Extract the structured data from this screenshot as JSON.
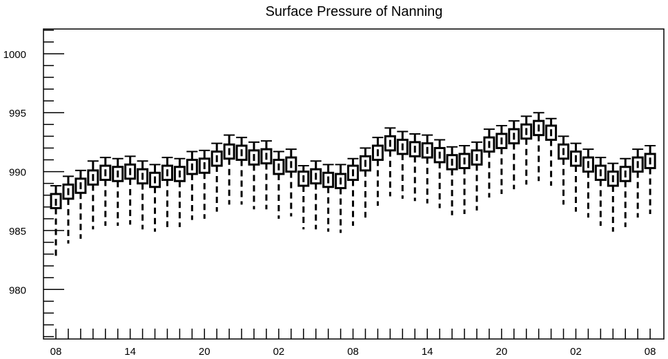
{
  "chart_data": {
    "type": "box",
    "title": "Surface Pressure of Nanning",
    "xlabel": "",
    "ylabel": "",
    "ylim": [
      975.8,
      1002.1
    ],
    "grid": false,
    "x_tick_labels": [
      "08",
      "14",
      "20",
      "02",
      "08",
      "14",
      "20",
      "02",
      "08"
    ],
    "y_tick_labels": [
      "980",
      "985",
      "990",
      "995",
      "1000"
    ],
    "series": [
      {
        "values": [
          {
            "x": 0,
            "median": 987.4,
            "q1": 986.9,
            "q3": 988.1,
            "whisker_low": 982.8,
            "whisker_high": 988.8
          },
          {
            "x": 1,
            "median": 988.3,
            "q1": 987.7,
            "q3": 988.9,
            "whisker_low": 983.9,
            "whisker_high": 989.6
          },
          {
            "x": 2,
            "median": 988.8,
            "q1": 988.2,
            "q3": 989.4,
            "whisker_low": 984.3,
            "whisker_high": 990.1
          },
          {
            "x": 3,
            "median": 989.5,
            "q1": 988.9,
            "q3": 990.1,
            "whisker_low": 985.1,
            "whisker_high": 990.9
          },
          {
            "x": 4,
            "median": 989.9,
            "q1": 989.3,
            "q3": 990.5,
            "whisker_low": 985.4,
            "whisker_high": 991.2
          },
          {
            "x": 5,
            "median": 989.8,
            "q1": 989.2,
            "q3": 990.4,
            "whisker_low": 985.4,
            "whisker_high": 991.1
          },
          {
            "x": 6,
            "median": 990.0,
            "q1": 989.4,
            "q3": 990.6,
            "whisker_low": 985.5,
            "whisker_high": 991.3
          },
          {
            "x": 7,
            "median": 989.6,
            "q1": 989.0,
            "q3": 990.2,
            "whisker_low": 985.1,
            "whisker_high": 990.9
          },
          {
            "x": 8,
            "median": 989.3,
            "q1": 988.7,
            "q3": 989.9,
            "whisker_low": 984.9,
            "whisker_high": 990.6
          },
          {
            "x": 9,
            "median": 989.9,
            "q1": 989.3,
            "q3": 990.5,
            "whisker_low": 985.3,
            "whisker_high": 991.2
          },
          {
            "x": 10,
            "median": 989.8,
            "q1": 989.2,
            "q3": 990.4,
            "whisker_low": 985.3,
            "whisker_high": 991.1
          },
          {
            "x": 11,
            "median": 990.4,
            "q1": 989.8,
            "q3": 991.0,
            "whisker_low": 985.9,
            "whisker_high": 991.7
          },
          {
            "x": 12,
            "median": 990.5,
            "q1": 989.9,
            "q3": 991.1,
            "whisker_low": 986.0,
            "whisker_high": 991.8
          },
          {
            "x": 13,
            "median": 991.1,
            "q1": 990.5,
            "q3": 991.7,
            "whisker_low": 986.6,
            "whisker_high": 992.4
          },
          {
            "x": 14,
            "median": 991.7,
            "q1": 991.1,
            "q3": 992.3,
            "whisker_low": 987.2,
            "whisker_high": 993.1
          },
          {
            "x": 15,
            "median": 991.6,
            "q1": 991.0,
            "q3": 992.2,
            "whisker_low": 987.2,
            "whisker_high": 992.9
          },
          {
            "x": 16,
            "median": 991.2,
            "q1": 990.6,
            "q3": 991.8,
            "whisker_low": 986.8,
            "whisker_high": 992.5
          },
          {
            "x": 17,
            "median": 991.3,
            "q1": 990.7,
            "q3": 991.9,
            "whisker_low": 986.8,
            "whisker_high": 992.6
          },
          {
            "x": 18,
            "median": 990.4,
            "q1": 989.8,
            "q3": 991.0,
            "whisker_low": 986.0,
            "whisker_high": 991.7
          },
          {
            "x": 19,
            "median": 990.6,
            "q1": 990.0,
            "q3": 991.2,
            "whisker_low": 986.2,
            "whisker_high": 991.9
          },
          {
            "x": 20,
            "median": 989.4,
            "q1": 988.8,
            "q3": 990.0,
            "whisker_low": 985.1,
            "whisker_high": 990.5
          },
          {
            "x": 21,
            "median": 989.6,
            "q1": 989.0,
            "q3": 990.2,
            "whisker_low": 985.1,
            "whisker_high": 990.9
          },
          {
            "x": 22,
            "median": 989.3,
            "q1": 988.7,
            "q3": 989.9,
            "whisker_low": 984.9,
            "whisker_high": 990.6
          },
          {
            "x": 23,
            "median": 989.2,
            "q1": 988.6,
            "q3": 989.8,
            "whisker_low": 984.8,
            "whisker_high": 990.6
          },
          {
            "x": 24,
            "median": 989.9,
            "q1": 989.3,
            "q3": 990.5,
            "whisker_low": 985.4,
            "whisker_high": 991.1
          },
          {
            "x": 25,
            "median": 990.7,
            "q1": 990.1,
            "q3": 991.3,
            "whisker_low": 986.1,
            "whisker_high": 992.0
          },
          {
            "x": 26,
            "median": 991.6,
            "q1": 991.0,
            "q3": 992.2,
            "whisker_low": 987.1,
            "whisker_high": 992.9
          },
          {
            "x": 27,
            "median": 992.4,
            "q1": 991.8,
            "q3": 993.0,
            "whisker_low": 987.9,
            "whisker_high": 993.7
          },
          {
            "x": 28,
            "median": 992.1,
            "q1": 991.5,
            "q3": 992.7,
            "whisker_low": 987.7,
            "whisker_high": 993.4
          },
          {
            "x": 29,
            "median": 991.9,
            "q1": 991.3,
            "q3": 992.5,
            "whisker_low": 987.5,
            "whisker_high": 993.2
          },
          {
            "x": 30,
            "median": 991.8,
            "q1": 991.2,
            "q3": 992.4,
            "whisker_low": 987.3,
            "whisker_high": 993.1
          },
          {
            "x": 31,
            "median": 991.4,
            "q1": 990.8,
            "q3": 992.0,
            "whisker_low": 986.9,
            "whisker_high": 992.7
          },
          {
            "x": 32,
            "median": 990.8,
            "q1": 990.2,
            "q3": 991.4,
            "whisker_low": 986.3,
            "whisker_high": 992.1
          },
          {
            "x": 33,
            "median": 990.9,
            "q1": 990.3,
            "q3": 991.5,
            "whisker_low": 986.4,
            "whisker_high": 992.2
          },
          {
            "x": 34,
            "median": 991.2,
            "q1": 990.6,
            "q3": 991.8,
            "whisker_low": 986.7,
            "whisker_high": 992.5
          },
          {
            "x": 35,
            "median": 992.3,
            "q1": 991.7,
            "q3": 992.9,
            "whisker_low": 987.8,
            "whisker_high": 993.6
          },
          {
            "x": 36,
            "median": 992.6,
            "q1": 992.0,
            "q3": 993.2,
            "whisker_low": 988.1,
            "whisker_high": 993.9
          },
          {
            "x": 37,
            "median": 993.0,
            "q1": 992.4,
            "q3": 993.6,
            "whisker_low": 988.5,
            "whisker_high": 994.3
          },
          {
            "x": 38,
            "median": 993.4,
            "q1": 992.8,
            "q3": 994.0,
            "whisker_low": 988.9,
            "whisker_high": 994.7
          },
          {
            "x": 39,
            "median": 993.7,
            "q1": 993.1,
            "q3": 994.3,
            "whisker_low": 989.2,
            "whisker_high": 995.0
          },
          {
            "x": 40,
            "median": 993.3,
            "q1": 992.7,
            "q3": 993.9,
            "whisker_low": 988.8,
            "whisker_high": 994.5
          },
          {
            "x": 41,
            "median": 991.7,
            "q1": 991.1,
            "q3": 992.3,
            "whisker_low": 987.2,
            "whisker_high": 993.0
          },
          {
            "x": 42,
            "median": 991.1,
            "q1": 990.5,
            "q3": 991.7,
            "whisker_low": 986.6,
            "whisker_high": 992.4
          },
          {
            "x": 43,
            "median": 990.6,
            "q1": 990.0,
            "q3": 991.2,
            "whisker_low": 986.1,
            "whisker_high": 991.9
          },
          {
            "x": 44,
            "median": 989.9,
            "q1": 989.3,
            "q3": 990.5,
            "whisker_low": 985.4,
            "whisker_high": 991.2
          },
          {
            "x": 45,
            "median": 989.4,
            "q1": 988.8,
            "q3": 990.0,
            "whisker_low": 984.9,
            "whisker_high": 990.7
          },
          {
            "x": 46,
            "median": 989.8,
            "q1": 989.2,
            "q3": 990.4,
            "whisker_low": 985.3,
            "whisker_high": 991.1
          },
          {
            "x": 47,
            "median": 990.6,
            "q1": 990.0,
            "q3": 991.2,
            "whisker_low": 986.1,
            "whisker_high": 991.9
          },
          {
            "x": 48,
            "median": 990.9,
            "q1": 990.3,
            "q3": 991.5,
            "whisker_low": 986.4,
            "whisker_high": 992.2
          }
        ]
      }
    ],
    "colors": {
      "stroke": "#000000",
      "background": "#ffffff"
    }
  }
}
